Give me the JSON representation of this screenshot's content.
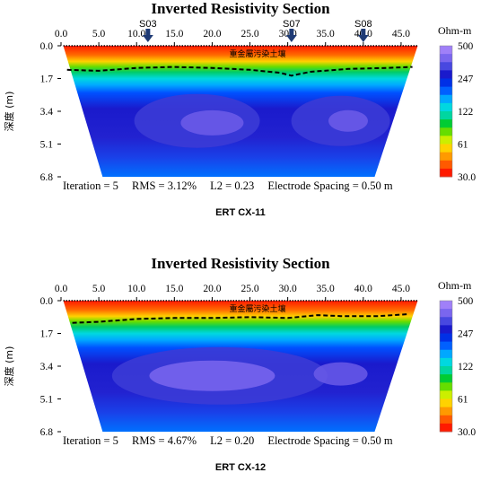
{
  "chart_data": [
    {
      "type": "heatmap",
      "title": "Inverted Resistivity Section",
      "caption": "ERT CX-11",
      "ylabel": "深度 (m)",
      "x_ticks": [
        "0.0",
        "5.0",
        "10.0",
        "15.0",
        "20.0",
        "25.0",
        "30.0",
        "35.0",
        "40.0",
        "45.0"
      ],
      "y_ticks": [
        "0.0",
        "1.7",
        "3.4",
        "5.1",
        "6.8"
      ],
      "xlim": [
        0,
        47.5
      ],
      "ylim": [
        0,
        6.8
      ],
      "colorbar": {
        "unit": "Ohm-m",
        "ticks": [
          "500",
          "247",
          "122",
          "61",
          "30.0"
        ]
      },
      "markers": [
        {
          "label": "S03",
          "x": 11.5
        },
        {
          "label": "S07",
          "x": 30.5
        },
        {
          "label": "S08",
          "x": 40.0
        }
      ],
      "annotation": "重金屬污染土壤",
      "stats": {
        "iteration": "Iteration = 5",
        "rms": "RMS = 3.12%",
        "l2": "L2 = 0.23",
        "spacing": "Electrode Spacing = 0.50 m"
      }
    },
    {
      "type": "heatmap",
      "title": "Inverted Resistivity Section",
      "caption": "ERT CX-12",
      "ylabel": "深度 (m)",
      "x_ticks": [
        "0.0",
        "5.0",
        "10.0",
        "15.0",
        "20.0",
        "25.0",
        "30.0",
        "35.0",
        "40.0",
        "45.0"
      ],
      "y_ticks": [
        "0.0",
        "1.7",
        "3.4",
        "5.1",
        "6.8"
      ],
      "xlim": [
        0,
        47.5
      ],
      "ylim": [
        0,
        6.8
      ],
      "colorbar": {
        "unit": "Ohm-m",
        "ticks": [
          "500",
          "247",
          "122",
          "61",
          "30.0"
        ]
      },
      "markers": [],
      "annotation": "重金屬污染土壤",
      "stats": {
        "iteration": "Iteration = 5",
        "rms": "RMS = 4.67%",
        "l2": "L2 = 0.20",
        "spacing": "Electrode Spacing = 0.50 m"
      }
    }
  ],
  "colors": {
    "scale": [
      "#ff1a00",
      "#ff5a00",
      "#ff9a00",
      "#ffd200",
      "#ccee00",
      "#66dd00",
      "#00cc33",
      "#00d6a0",
      "#00d8e0",
      "#00a8ff",
      "#0060ff",
      "#0030e6",
      "#1a1acc",
      "#4848e0",
      "#7a66ee",
      "#a080f8"
    ]
  }
}
